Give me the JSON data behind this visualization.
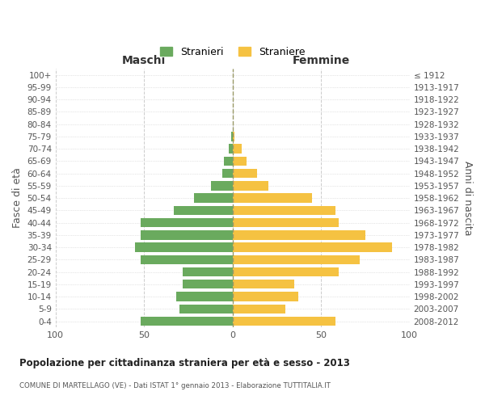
{
  "age_groups": [
    "0-4",
    "5-9",
    "10-14",
    "15-19",
    "20-24",
    "25-29",
    "30-34",
    "35-39",
    "40-44",
    "45-49",
    "50-54",
    "55-59",
    "60-64",
    "65-69",
    "70-74",
    "75-79",
    "80-84",
    "85-89",
    "90-94",
    "95-99",
    "100+"
  ],
  "birth_years": [
    "2008-2012",
    "2003-2007",
    "1998-2002",
    "1993-1997",
    "1988-1992",
    "1983-1987",
    "1978-1982",
    "1973-1977",
    "1968-1972",
    "1963-1967",
    "1958-1962",
    "1953-1957",
    "1948-1952",
    "1943-1947",
    "1938-1942",
    "1933-1937",
    "1928-1932",
    "1923-1927",
    "1918-1922",
    "1913-1917",
    "≤ 1912"
  ],
  "maschi": [
    52,
    30,
    32,
    28,
    28,
    52,
    55,
    52,
    52,
    33,
    22,
    12,
    6,
    5,
    2,
    1,
    0,
    0,
    0,
    0,
    0
  ],
  "femmine": [
    58,
    30,
    37,
    35,
    60,
    72,
    90,
    75,
    60,
    58,
    45,
    20,
    14,
    8,
    5,
    1,
    0,
    0,
    0,
    0,
    0
  ],
  "male_color": "#6aaa5e",
  "female_color": "#f5c242",
  "background_color": "#ffffff",
  "grid_color": "#cccccc",
  "title": "Popolazione per cittadinanza straniera per età e sesso - 2013",
  "subtitle": "COMUNE DI MARTELLAGO (VE) - Dati ISTAT 1° gennaio 2013 - Elaborazione TUTTITALIA.IT",
  "ylabel_left": "Fasce di età",
  "ylabel_right": "Anni di nascita",
  "xlabel_left": "Maschi",
  "xlabel_right": "Femmine",
  "legend_male": "Stranieri",
  "legend_female": "Straniere",
  "xlim": 100,
  "bar_height": 0.75
}
